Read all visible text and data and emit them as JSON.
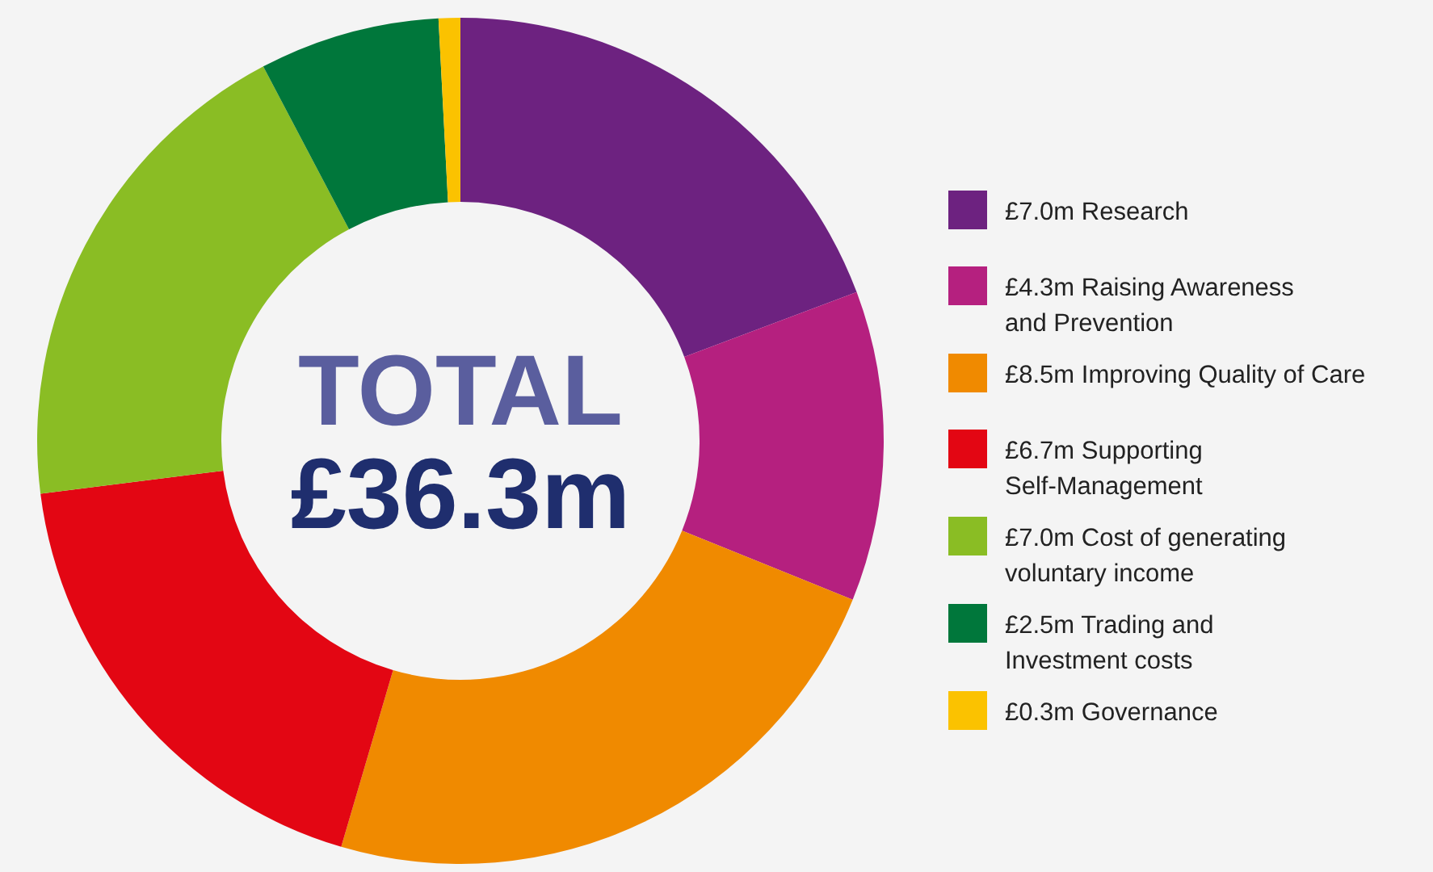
{
  "chart_data": {
    "type": "donut",
    "categories": [
      "Research",
      "Raising Awareness\nand Prevention",
      "Improving Quality of Care",
      "Supporting\nSelf-Management",
      "Cost of generating\nvoluntary income",
      "Trading and\nInvestment costs",
      "Governance"
    ],
    "values": [
      7.0,
      4.3,
      8.5,
      6.7,
      7.0,
      2.5,
      0.3
    ],
    "value_labels": [
      "£7.0m",
      "£4.3m",
      "£8.5m",
      "£6.7m",
      "£7.0m",
      "£2.5m",
      "£0.3m"
    ],
    "colors": [
      "#6d2280",
      "#b5207f",
      "#f08a00",
      "#e30613",
      "#8abd24",
      "#00773b",
      "#fbc200"
    ],
    "annotations": [
      "TOTAL",
      "£36.3m"
    ],
    "legend": "right"
  }
}
